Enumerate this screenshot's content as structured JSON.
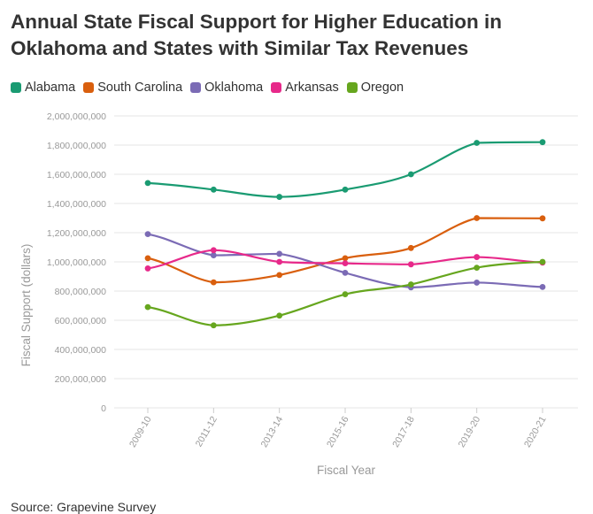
{
  "title": "Annual State Fiscal Support for Higher Education in Oklahoma and States with Similar Tax Revenues",
  "source": "Source: Grapevine Survey",
  "chart_data": {
    "type": "line",
    "title": "Annual State Fiscal Support for Higher Education in Oklahoma and States with Similar Tax Revenues",
    "xlabel": "Fiscal Year",
    "ylabel": "Fiscal Support (dollars)",
    "ylim": [
      0,
      2000000000
    ],
    "yticks": [
      0,
      200000000,
      400000000,
      600000000,
      800000000,
      1000000000,
      1200000000,
      1400000000,
      1600000000,
      1800000000,
      2000000000
    ],
    "grid": true,
    "legend_position": "top-left",
    "categories": [
      "2009-10",
      "2011-12",
      "2013-14",
      "2015-16",
      "2017-18",
      "2019-20",
      "2020-21"
    ],
    "series": [
      {
        "name": "Alabama",
        "color": "#1a9b72",
        "values": [
          1540000000,
          1495000000,
          1445000000,
          1495000000,
          1600000000,
          1815000000,
          1820000000
        ]
      },
      {
        "name": "South Carolina",
        "color": "#d95f0e",
        "values": [
          1025000000,
          860000000,
          910000000,
          1025000000,
          1095000000,
          1300000000,
          1298000000
        ]
      },
      {
        "name": "Oklahoma",
        "color": "#7b6bb5",
        "values": [
          1190000000,
          1045000000,
          1055000000,
          925000000,
          825000000,
          858000000,
          828000000
        ]
      },
      {
        "name": "Arkansas",
        "color": "#e7298a",
        "values": [
          955000000,
          1080000000,
          1000000000,
          990000000,
          983000000,
          1033000000,
          995000000
        ]
      },
      {
        "name": "Oregon",
        "color": "#66a61e",
        "values": [
          690000000,
          565000000,
          632000000,
          778000000,
          845000000,
          960000000,
          1000000000
        ]
      }
    ]
  }
}
